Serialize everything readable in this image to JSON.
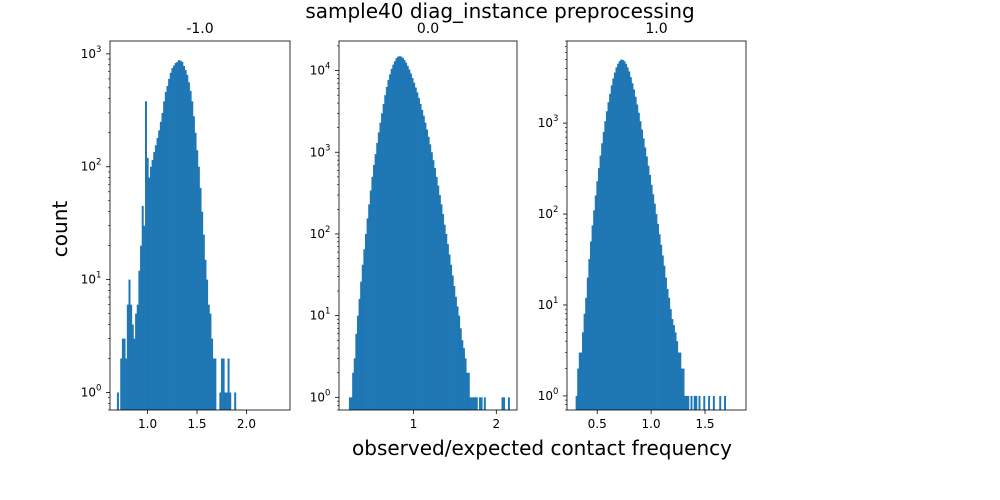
{
  "suptitle": "sample40 diag_instance preprocessing",
  "xlabel": "observed/expected contact frequency",
  "ylabel": "count",
  "chart_data": [
    {
      "type": "bar",
      "title": "-1.0",
      "yscale": "log",
      "xlim": [
        0.62,
        2.44
      ],
      "ylim": [
        0.7,
        1300
      ],
      "xticks": [
        {
          "value": 1.0,
          "label": "1.0"
        },
        {
          "value": 1.5,
          "label": "1.5"
        },
        {
          "value": 2.0,
          "label": "2.0"
        }
      ],
      "yticks": [
        {
          "value": 1,
          "label": "10",
          "exp": "0"
        },
        {
          "value": 10,
          "label": "10",
          "exp": "1"
        },
        {
          "value": 100,
          "label": "10",
          "exp": "2"
        },
        {
          "value": 1000,
          "label": "10",
          "exp": "3"
        }
      ],
      "bin_start": 0.69,
      "bin_width": 0.0167,
      "counts": [
        1,
        0,
        2,
        3,
        3,
        2,
        6,
        10,
        6,
        4,
        3,
        5,
        6,
        12,
        20,
        45,
        30,
        380,
        120,
        80,
        100,
        115,
        135,
        155,
        180,
        210,
        250,
        300,
        380,
        460,
        520,
        600,
        680,
        750,
        790,
        830,
        850,
        880,
        870,
        850,
        780,
        720,
        650,
        560,
        470,
        380,
        280,
        200,
        140,
        100,
        65,
        40,
        25,
        15,
        10,
        6,
        5,
        3,
        2,
        2,
        0,
        0,
        1,
        2,
        2,
        1,
        1,
        2,
        1,
        0,
        0,
        1
      ]
    },
    {
      "type": "bar",
      "title": "0.0",
      "yscale": "log",
      "xlim": [
        0.1,
        2.25
      ],
      "ylim": [
        0.7,
        23000
      ],
      "xticks": [
        {
          "value": 1,
          "label": "1"
        },
        {
          "value": 2,
          "label": "2"
        }
      ],
      "yticks": [
        {
          "value": 1,
          "label": "10",
          "exp": "0"
        },
        {
          "value": 10,
          "label": "10",
          "exp": "1"
        },
        {
          "value": 100,
          "label": "10",
          "exp": "2"
        },
        {
          "value": 1000,
          "label": "10",
          "exp": "3"
        },
        {
          "value": 10000,
          "label": "10",
          "exp": "4"
        }
      ],
      "bin_start": 0.22,
      "bin_width": 0.0194,
      "counts": [
        1,
        1,
        2,
        3,
        6,
        10,
        16,
        26,
        42,
        65,
        100,
        155,
        230,
        340,
        500,
        700,
        950,
        1300,
        1750,
        2300,
        3000,
        3900,
        5000,
        6300,
        7700,
        9000,
        10500,
        11800,
        13000,
        14200,
        14800,
        15000,
        14800,
        14300,
        13500,
        12500,
        11400,
        10300,
        9200,
        8100,
        7100,
        6200,
        5400,
        4600,
        3900,
        3300,
        2800,
        2300,
        1900,
        1550,
        1250,
        1000,
        800,
        640,
        500,
        390,
        300,
        230,
        175,
        130,
        100,
        75,
        56,
        42,
        31,
        23,
        17,
        13,
        10,
        7,
        5,
        4,
        3,
        2,
        2,
        1,
        1,
        1,
        1,
        1,
        0,
        1,
        1,
        0,
        1,
        0,
        0,
        0,
        0,
        0,
        0,
        0,
        0,
        0,
        0,
        1,
        1,
        0,
        0,
        1,
        0,
        0,
        0,
        0
      ]
    },
    {
      "type": "bar",
      "title": "1.0",
      "yscale": "log",
      "xlim": [
        0.22,
        1.88
      ],
      "ylim": [
        0.7,
        8000
      ],
      "xticks": [
        {
          "value": 0.5,
          "label": "0.5"
        },
        {
          "value": 1.0,
          "label": "1.0"
        },
        {
          "value": 1.5,
          "label": "1.5"
        }
      ],
      "yticks": [
        {
          "value": 1,
          "label": "10",
          "exp": "0"
        },
        {
          "value": 10,
          "label": "10",
          "exp": "1"
        },
        {
          "value": 100,
          "label": "10",
          "exp": "2"
        },
        {
          "value": 1000,
          "label": "10",
          "exp": "3"
        }
      ],
      "bin_start": 0.3,
      "bin_width": 0.0148,
      "counts": [
        1,
        2,
        3,
        3,
        5,
        8,
        12,
        20,
        32,
        50,
        75,
        110,
        160,
        230,
        320,
        440,
        600,
        800,
        1050,
        1350,
        1700,
        2100,
        2600,
        3100,
        3600,
        4100,
        4500,
        4800,
        5000,
        4950,
        4800,
        4500,
        4100,
        3700,
        3200,
        2750,
        2350,
        1950,
        1600,
        1300,
        1050,
        850,
        680,
        540,
        430,
        340,
        270,
        210,
        165,
        130,
        100,
        78,
        60,
        46,
        35,
        27,
        20,
        15,
        12,
        9,
        7,
        6,
        5,
        4,
        3,
        3,
        2,
        2,
        1,
        1,
        1,
        0,
        1,
        0,
        1,
        1,
        0,
        1,
        0,
        0,
        1,
        0,
        0,
        1,
        0,
        0,
        1,
        0,
        0,
        0,
        1,
        0,
        0,
        1
      ]
    }
  ]
}
